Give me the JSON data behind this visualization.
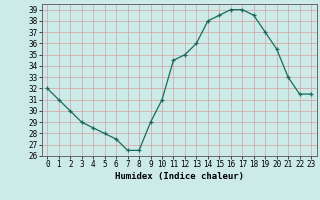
{
  "x": [
    0,
    1,
    2,
    3,
    4,
    5,
    6,
    7,
    8,
    9,
    10,
    11,
    12,
    13,
    14,
    15,
    16,
    17,
    18,
    19,
    20,
    21,
    22,
    23
  ],
  "y": [
    32,
    31,
    30,
    29,
    28.5,
    28,
    27.5,
    26.5,
    26.5,
    29,
    31,
    34.5,
    35,
    36,
    38,
    38.5,
    39,
    39,
    38.5,
    37,
    35.5,
    33,
    31.5,
    31.5
  ],
  "line_color": "#1a6b5a",
  "marker_color": "#1a6b5a",
  "bg_color": "#cceae8",
  "grid_color": "#b0d8d4",
  "xlabel": "Humidex (Indice chaleur)",
  "ylim": [
    26,
    39.5
  ],
  "xlim": [
    -0.5,
    23.5
  ],
  "yticks": [
    26,
    27,
    28,
    29,
    30,
    31,
    32,
    33,
    34,
    35,
    36,
    37,
    38,
    39
  ],
  "xticks": [
    0,
    1,
    2,
    3,
    4,
    5,
    6,
    7,
    8,
    9,
    10,
    11,
    12,
    13,
    14,
    15,
    16,
    17,
    18,
    19,
    20,
    21,
    22,
    23
  ],
  "label_fontsize": 6.5,
  "tick_fontsize": 5.5
}
